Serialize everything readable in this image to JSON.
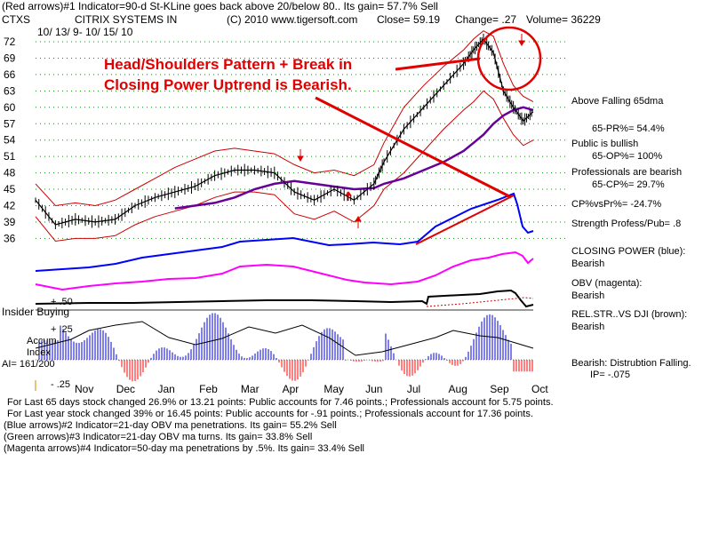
{
  "header": {
    "line1": "(Red arrows)#1 Indicator=90-d St-KLine goes back above 20/below 80.. Its gain= 57.7% Sell",
    "symbol": "CTXS",
    "company": "CITRIX SYSTEMS IN",
    "copyright": "(C) 2010 www.tigersoft.com",
    "close": "Close=  59.19",
    "change": "Change= .27",
    "volume": "Volume=  36229",
    "daterange": "10/ 13/ 9-  10/ 15/ 10"
  },
  "annotation": {
    "line1": "Head/Shoulders Pattern + Break in",
    "line2": "Closing Power Uptrend is Bearish."
  },
  "lower_labels": {
    "plus50": "+ .50",
    "insider": "Insider Buying",
    "plus25": "+ .25",
    "accum": "Accum",
    "index": "Index",
    "ai": "AI= 161/200",
    "minus25": "- .25"
  },
  "right_panel": {
    "above": "Above Falling 65dma",
    "pr": "65-PR%= 54.4%",
    "public": "Public is bullish",
    "op": "65-OP%= 100%",
    "pros": "Professionals are bearish",
    "cp": "65-CP%= 29.7%",
    "cpvspr": "CP%vsPr%= -24.7%",
    "strength": "Strength Profess/Pub= .8",
    "cp_title": "CLOSING POWER (blue):",
    "cp_val": "Bearish",
    "obv_title": "OBV (magenta):",
    "obv_val": "Bearish",
    "rel_title": "REL.STR..VS DJI (brown):",
    "rel_val": "Bearish",
    "dist": "Bearish: Distrubtion Falling.",
    "ip": "IP= -.075"
  },
  "footer": {
    "l1": "For Last 65 days stock changed  26.9% or  13.21 points:  Public accounts for  7.46 points.;  Professionals account for  5.75 points.",
    "l2": "For Last year stock changed  39% or  16.45 points:  Public accounts for -.91 points.;  Professionals account for  17.36 points.",
    "l3": "(Blue arrows)#2 Indicator=21-day OBV ma penetrations. Its gain= 55.2% Sell",
    "l4": "(Green arrows)#3 Indicator=21-day OBV ma turns. Its gain= 33.8% Sell",
    "l5": "(Magenta arrows)#4 Indicator=50-day ma penetrations by .5%. Its gain= 33.4% Sell"
  },
  "colors": {
    "price": "#000000",
    "bands": "#cc0000",
    "ma": "#660099",
    "closing_power": "#0000ff",
    "obv": "#ff00ff",
    "rel_strength": "#000000",
    "accum": "#0000cc",
    "accum_negative": "#ff0000",
    "annotation": "#e00000",
    "grid": "#009900"
  },
  "chart_data": {
    "type": "line",
    "title": "CTXS  CITRIX SYSTEMS IN",
    "x_months": [
      "Nov",
      "Dec",
      "Jan",
      "Feb",
      "Mar",
      "Apr",
      "May",
      "Jun",
      "Jul",
      "Aug",
      "Sep",
      "Oct"
    ],
    "y_ticks": [
      72,
      69,
      66,
      63,
      60,
      57,
      54,
      51,
      48,
      45,
      42,
      39,
      36
    ],
    "ylim": [
      35,
      74
    ],
    "grid": "dotted horizontal",
    "t": [
      0,
      0.04,
      0.08,
      0.12,
      0.16,
      0.2,
      0.24,
      0.28,
      0.32,
      0.36,
      0.4,
      0.44,
      0.48,
      0.52,
      0.56,
      0.6,
      0.64,
      0.68,
      0.7,
      0.74,
      0.78,
      0.82,
      0.86,
      0.88,
      0.9,
      0.92,
      0.94,
      0.96,
      0.98,
      1.0
    ],
    "series": [
      {
        "name": "Price",
        "values": [
          43,
          38.5,
          39.5,
          39,
          39.5,
          42,
          43.5,
          44.5,
          45.5,
          47.5,
          48.5,
          48.5,
          48,
          44.5,
          43,
          45,
          43,
          46,
          50,
          56,
          60,
          64,
          68,
          70.5,
          72.5,
          70,
          63,
          60,
          57.5,
          59.2
        ]
      },
      {
        "name": "Upper Band",
        "values": [
          46,
          42,
          42.5,
          42,
          43,
          45,
          47,
          49,
          50.5,
          52,
          52.5,
          52,
          51.5,
          49.5,
          48,
          48.5,
          47.5,
          49.5,
          53.5,
          60,
          64,
          67.5,
          70.5,
          72.5,
          74,
          73,
          68,
          64,
          62,
          61
        ]
      },
      {
        "name": "Lower Band",
        "values": [
          40,
          35.5,
          36,
          36,
          36.5,
          38.5,
          40,
          41,
          42,
          43.5,
          44.5,
          44.5,
          44,
          40.5,
          39.5,
          41,
          39,
          42,
          45,
          48,
          52,
          56,
          59.5,
          61,
          63,
          61.5,
          58,
          55,
          53,
          54
        ]
      },
      {
        "name": "65dma",
        "values": [
          null,
          null,
          null,
          null,
          null,
          null,
          null,
          41.5,
          42,
          42.5,
          43.5,
          45,
          46,
          46.5,
          46,
          45.5,
          45,
          45.2,
          46,
          47,
          48.5,
          50,
          52,
          53.5,
          55,
          57,
          58.5,
          59.5,
          60,
          59.5
        ]
      }
    ],
    "indicators": {
      "closing_power_last_signal": "Bearish",
      "obv_last_signal": "Bearish",
      "rel_strength_last_signal": "Bearish",
      "accum_index_range": [
        -0.25,
        0.5
      ]
    }
  }
}
